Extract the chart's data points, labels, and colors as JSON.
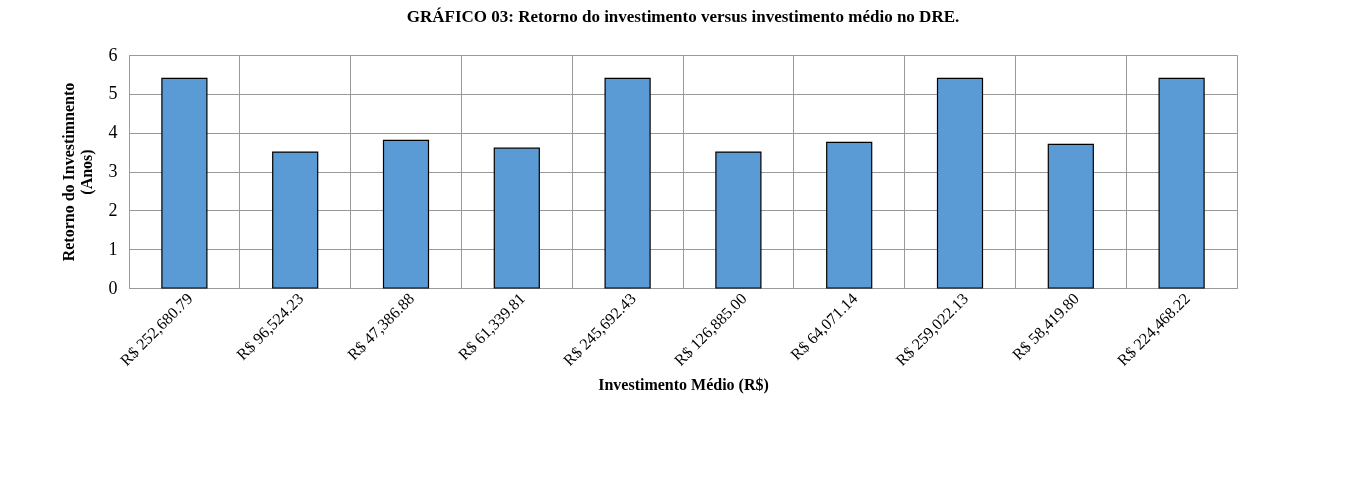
{
  "chart_data": {
    "type": "bar",
    "title": "GRÁFICO 03: Retorno do investimento versus investimento médio no DRE.",
    "xlabel": "Investimento Médio (R$)",
    "ylabel": [
      "Retorno do Investimnento",
      "(Anos)"
    ],
    "categories": [
      "R$ 252,680.79",
      "R$ 96,524.23",
      "R$ 47,386.88",
      "R$ 61,339.81",
      "R$ 245,692.43",
      "R$ 126,885.00",
      "R$ 64,071.14",
      "R$ 259,022.13",
      "R$ 58,419.80",
      "R$ 224,468.22"
    ],
    "values": [
      5.4,
      3.5,
      3.8,
      3.6,
      5.4,
      3.5,
      3.75,
      5.4,
      3.7,
      5.4
    ],
    "color": "#5b9bd5",
    "ylim": [
      0,
      6
    ],
    "yticks": [
      0,
      1,
      2,
      3,
      4,
      5,
      6
    ],
    "grid": true
  }
}
